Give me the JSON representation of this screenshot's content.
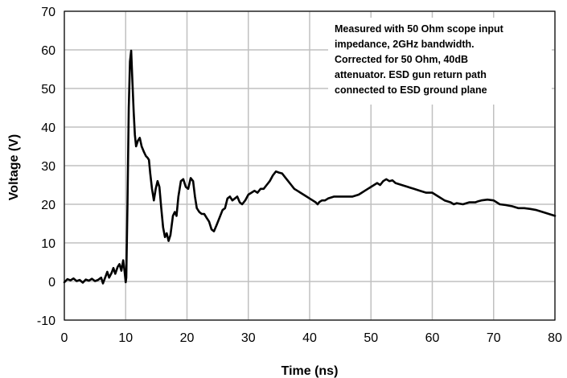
{
  "chart_data": {
    "type": "line",
    "xlabel": "Time (ns)",
    "ylabel": "Voltage (V)",
    "xlim": [
      0,
      80
    ],
    "ylim": [
      -10,
      70
    ],
    "xticks": [
      0,
      10,
      20,
      30,
      40,
      50,
      60,
      70,
      80
    ],
    "yticks": [
      -10,
      0,
      10,
      20,
      30,
      40,
      50,
      60,
      70
    ],
    "grid": true,
    "annotation": [
      "Measured with 50 Ohm scope input",
      "impedance, 2GHz bandwidth.",
      "Corrected for 50 Ohm, 40dB",
      "attenuator. ESD gun return path",
      "connected to ESD ground plane"
    ],
    "series": [
      {
        "color": "#000000",
        "points": [
          [
            0,
            -0.2
          ],
          [
            0.5,
            0.6
          ],
          [
            1,
            0.3
          ],
          [
            1.5,
            0.8
          ],
          [
            2,
            0.1
          ],
          [
            2.5,
            0.4
          ],
          [
            3,
            -0.3
          ],
          [
            3.5,
            0.5
          ],
          [
            4,
            0.2
          ],
          [
            4.5,
            0.7
          ],
          [
            5,
            0.1
          ],
          [
            5.5,
            0.4
          ],
          [
            6,
            1.0
          ],
          [
            6.3,
            -0.5
          ],
          [
            6.7,
            1.2
          ],
          [
            7,
            2.5
          ],
          [
            7.3,
            1.0
          ],
          [
            7.7,
            2.2
          ],
          [
            8,
            3.5
          ],
          [
            8.3,
            2.0
          ],
          [
            8.7,
            3.8
          ],
          [
            9,
            4.5
          ],
          [
            9.3,
            2.8
          ],
          [
            9.6,
            5.5
          ],
          [
            9.8,
            3.0
          ],
          [
            10.0,
            -0.2
          ],
          [
            10.1,
            1.0
          ],
          [
            10.3,
            20.0
          ],
          [
            10.5,
            45.0
          ],
          [
            10.7,
            57.0
          ],
          [
            10.9,
            59.8
          ],
          [
            11.1,
            52.0
          ],
          [
            11.3,
            44.0
          ],
          [
            11.5,
            38.0
          ],
          [
            11.7,
            35.0
          ],
          [
            12.0,
            36.5
          ],
          [
            12.3,
            37.2
          ],
          [
            12.6,
            35.0
          ],
          [
            13.0,
            33.5
          ],
          [
            13.3,
            32.5
          ],
          [
            13.6,
            32.0
          ],
          [
            13.8,
            31.5
          ],
          [
            14.0,
            28.0
          ],
          [
            14.3,
            24.0
          ],
          [
            14.6,
            21.0
          ],
          [
            14.9,
            24.0
          ],
          [
            15.2,
            26.0
          ],
          [
            15.5,
            24.5
          ],
          [
            15.8,
            19.0
          ],
          [
            16.1,
            14.0
          ],
          [
            16.4,
            11.5
          ],
          [
            16.7,
            12.5
          ],
          [
            17.0,
            10.5
          ],
          [
            17.3,
            12.0
          ],
          [
            17.7,
            17.0
          ],
          [
            18.0,
            18.0
          ],
          [
            18.3,
            17.0
          ],
          [
            18.6,
            22.0
          ],
          [
            19.0,
            26.0
          ],
          [
            19.4,
            26.5
          ],
          [
            19.8,
            24.5
          ],
          [
            20.2,
            24.0
          ],
          [
            20.6,
            26.8
          ],
          [
            21.0,
            26.0
          ],
          [
            21.3,
            22.0
          ],
          [
            21.6,
            19.0
          ],
          [
            22.0,
            18.0
          ],
          [
            22.4,
            17.5
          ],
          [
            22.8,
            17.5
          ],
          [
            23.2,
            16.5
          ],
          [
            23.6,
            15.5
          ],
          [
            24.0,
            13.5
          ],
          [
            24.4,
            13.0
          ],
          [
            24.8,
            14.5
          ],
          [
            25.3,
            16.5
          ],
          [
            25.8,
            18.5
          ],
          [
            26.2,
            19.0
          ],
          [
            26.6,
            21.5
          ],
          [
            27.0,
            22.0
          ],
          [
            27.4,
            21.0
          ],
          [
            27.8,
            21.5
          ],
          [
            28.2,
            22.0
          ],
          [
            28.6,
            20.5
          ],
          [
            29.0,
            20.0
          ],
          [
            29.5,
            21.0
          ],
          [
            30.0,
            22.5
          ],
          [
            30.5,
            23.0
          ],
          [
            31.0,
            23.5
          ],
          [
            31.5,
            23.0
          ],
          [
            32.0,
            24.0
          ],
          [
            32.5,
            24.0
          ],
          [
            33.0,
            25.0
          ],
          [
            33.5,
            26.0
          ],
          [
            34.0,
            27.5
          ],
          [
            34.5,
            28.5
          ],
          [
            35.0,
            28.2
          ],
          [
            35.5,
            28.0
          ],
          [
            36.0,
            27.0
          ],
          [
            36.5,
            26.0
          ],
          [
            37.0,
            25.0
          ],
          [
            37.5,
            24.0
          ],
          [
            38.0,
            23.5
          ],
          [
            38.5,
            23.0
          ],
          [
            39.0,
            22.5
          ],
          [
            39.5,
            22.0
          ],
          [
            40.0,
            21.5
          ],
          [
            40.5,
            21.0
          ],
          [
            41.0,
            20.5
          ],
          [
            41.3,
            20.0
          ],
          [
            41.6,
            20.6
          ],
          [
            42.0,
            21.0
          ],
          [
            42.5,
            21.0
          ],
          [
            43.0,
            21.5
          ],
          [
            44.0,
            22.0
          ],
          [
            45.0,
            22.0
          ],
          [
            46.0,
            22.0
          ],
          [
            47.0,
            22.0
          ],
          [
            48.0,
            22.5
          ],
          [
            48.5,
            23.0
          ],
          [
            49.0,
            23.5
          ],
          [
            49.5,
            24.0
          ],
          [
            50.0,
            24.5
          ],
          [
            50.5,
            25.0
          ],
          [
            51.0,
            25.5
          ],
          [
            51.5,
            25.0
          ],
          [
            52.0,
            26.0
          ],
          [
            52.5,
            26.5
          ],
          [
            53.0,
            26.0
          ],
          [
            53.5,
            26.2
          ],
          [
            54.0,
            25.5
          ],
          [
            55.0,
            25.0
          ],
          [
            56.0,
            24.5
          ],
          [
            57.0,
            24.0
          ],
          [
            58.0,
            23.5
          ],
          [
            59.0,
            23.0
          ],
          [
            60.0,
            23.0
          ],
          [
            61.0,
            22.0
          ],
          [
            62.0,
            21.0
          ],
          [
            63.0,
            20.5
          ],
          [
            63.5,
            20.0
          ],
          [
            64.0,
            20.3
          ],
          [
            65.0,
            20.0
          ],
          [
            66.0,
            20.5
          ],
          [
            67.0,
            20.5
          ],
          [
            67.5,
            20.8
          ],
          [
            68.0,
            21.0
          ],
          [
            69.0,
            21.2
          ],
          [
            70.0,
            21.0
          ],
          [
            71.0,
            20.0
          ],
          [
            72.0,
            19.8
          ],
          [
            73.0,
            19.5
          ],
          [
            74.0,
            19.0
          ],
          [
            75.0,
            19.0
          ],
          [
            76.0,
            18.8
          ],
          [
            77.0,
            18.5
          ],
          [
            78.0,
            18.0
          ],
          [
            79.0,
            17.5
          ],
          [
            80.0,
            17.0
          ]
        ]
      }
    ]
  }
}
